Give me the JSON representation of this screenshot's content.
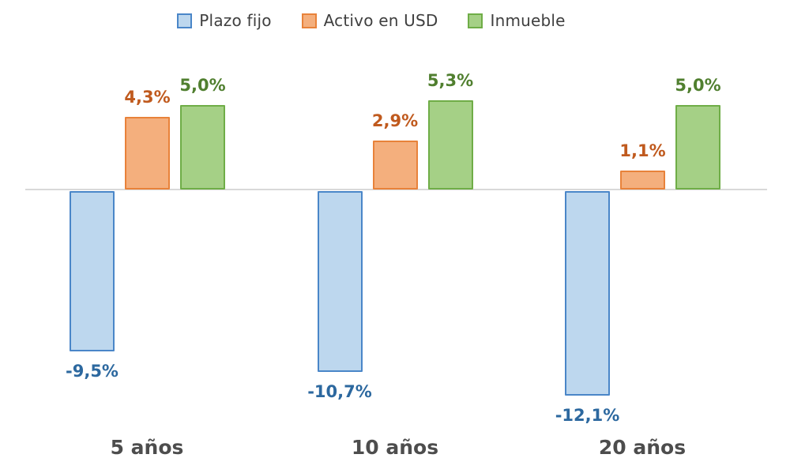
{
  "chart_data": {
    "type": "bar",
    "categories": [
      "5 años",
      "10 años",
      "20 años"
    ],
    "series": [
      {
        "name": "Plazo fijo",
        "values": [
          -9.5,
          -10.7,
          -12.1
        ],
        "value_labels": [
          "-9,5%",
          "-10,7%",
          "-12,1%"
        ],
        "color_key": "blue"
      },
      {
        "name": "Activo en USD",
        "values": [
          4.3,
          2.9,
          1.1
        ],
        "value_labels": [
          "4,3%",
          "2,9%",
          "1,1%"
        ],
        "color_key": "orange"
      },
      {
        "name": "Inmueble",
        "values": [
          5.0,
          5.3,
          5.0
        ],
        "value_labels": [
          "5,0%",
          "5,3%",
          "5,0%"
        ],
        "color_key": "green"
      }
    ],
    "title": "",
    "xlabel": "",
    "ylabel": "",
    "ylim": [
      -14,
      7
    ],
    "grid": false,
    "legend_position": "top",
    "zero_baseline": true,
    "decimal_separator": ","
  },
  "colors": {
    "blue": {
      "fill": "#BDD7EE",
      "border": "#4A86C8",
      "label": "#2C689F"
    },
    "orange": {
      "fill": "#F4AF7D",
      "border": "#E8823A",
      "label": "#C05A1E"
    },
    "green": {
      "fill": "#A5D086",
      "border": "#6FAD47",
      "label": "#507F2F"
    },
    "axis_line": "#D9D9D9",
    "legend_text": "#3F3F3F",
    "category_text": "#4D4D4D",
    "background": "#FFFFFF"
  }
}
